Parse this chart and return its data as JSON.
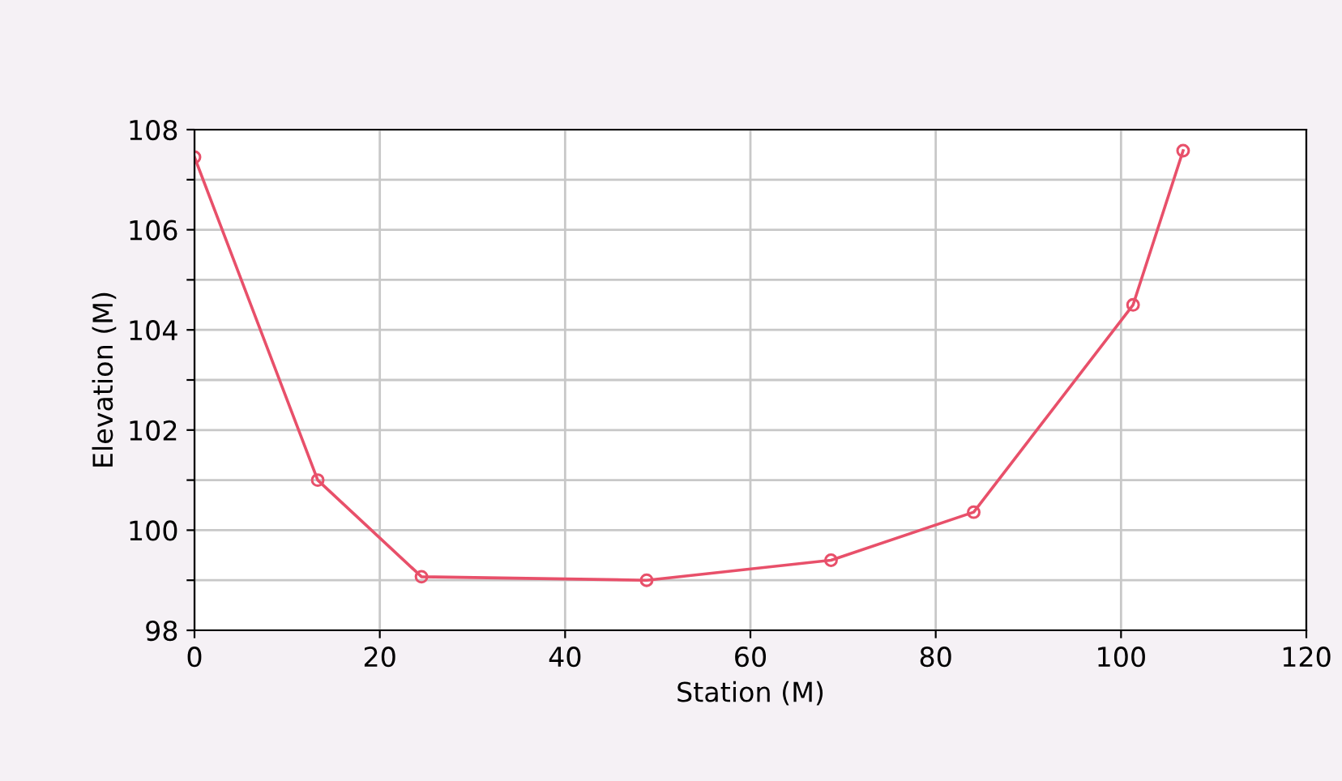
{
  "chart_data": {
    "type": "line",
    "xlabel": "Station (M)",
    "ylabel": "Elevation (M)",
    "x": [
      0,
      13.3,
      24.5,
      48.8,
      68.7,
      84.1,
      101.3,
      106.7
    ],
    "series": [
      {
        "color": "#e8506a",
        "values": [
          107.45,
          101.0,
          99.07,
          99.0,
          99.4,
          100.36,
          104.5,
          107.58
        ]
      }
    ],
    "xlim": [
      0,
      120
    ],
    "xticks": [
      0,
      20,
      40,
      60,
      80,
      100,
      120
    ],
    "ylim": [
      98,
      108
    ],
    "yticks": [
      98,
      {
        "value": 99,
        "label": null
      },
      100,
      {
        "value": 101,
        "label": null
      },
      102,
      {
        "value": 103,
        "label": null
      },
      104,
      {
        "value": 105,
        "label": null
      },
      106,
      {
        "value": 107,
        "label": null
      },
      108
    ],
    "grid": true,
    "marker": "circle",
    "line_style": "solid"
  }
}
